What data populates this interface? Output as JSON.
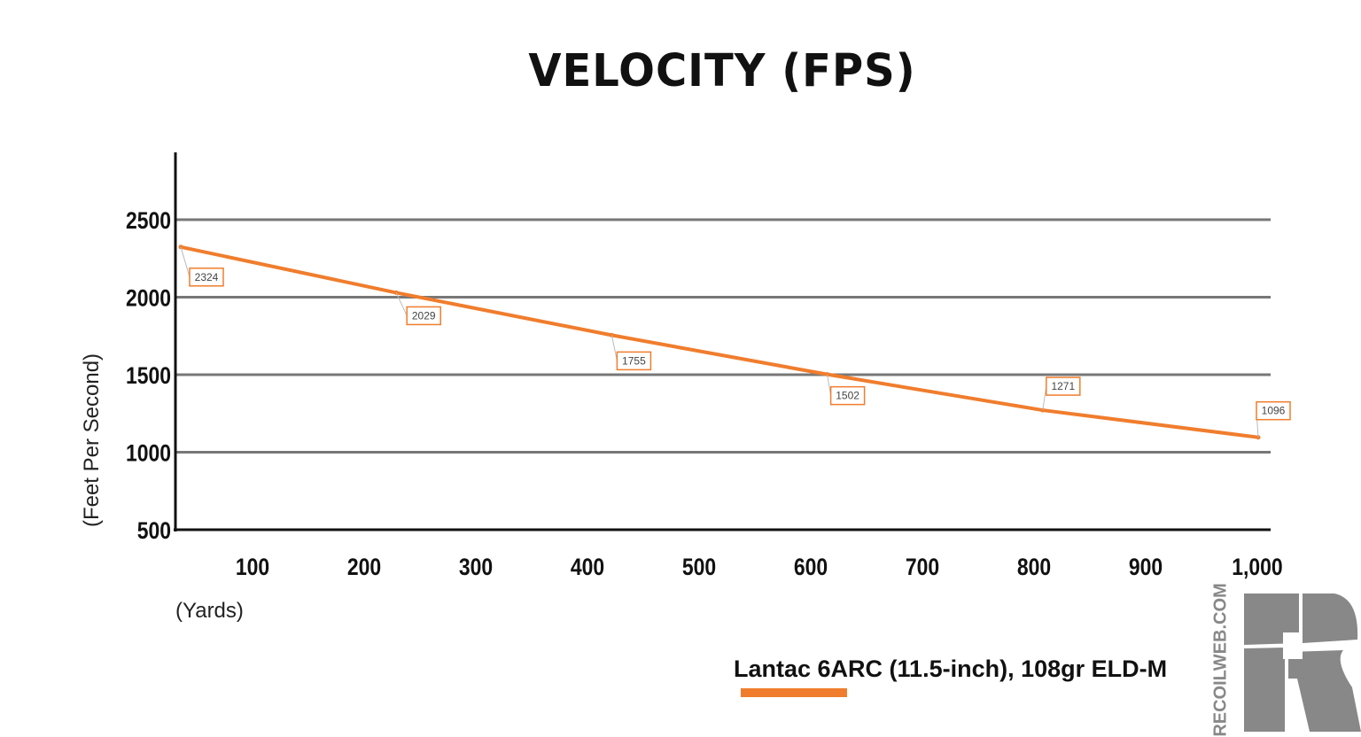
{
  "chart_data": {
    "type": "line",
    "title": "VELOCITY (FPS)",
    "xlabel": "(Yards)",
    "ylabel": "(Feet Per Second)",
    "x_tick_labels": [
      "100",
      "200",
      "300",
      "400",
      "500",
      "600",
      "700",
      "800",
      "900",
      "1,000"
    ],
    "y_tick_labels": [
      "500",
      "1000",
      "1500",
      "2000",
      "2500"
    ],
    "ylim": [
      500,
      2700
    ],
    "grid": true,
    "legend": "bottom-right",
    "series": [
      {
        "name": "Lantac 6ARC (11.5-inch), 108gr ELD-M",
        "color": "#f07d2d",
        "x": [
          0,
          200,
          400,
          600,
          800,
          1000
        ],
        "values": [
          2324,
          2029,
          1755,
          1502,
          1271,
          1096
        ],
        "data_labels": [
          "2324",
          "2029",
          "1755",
          "1502",
          "1271",
          "1096"
        ]
      }
    ]
  },
  "logo": {
    "text": "RECOILWEB.COM",
    "color": "#888888"
  }
}
